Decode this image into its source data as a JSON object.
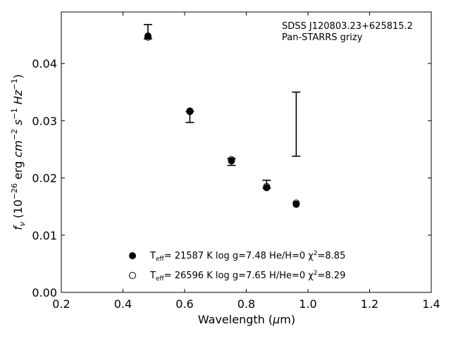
{
  "chart_data": {
    "type": "scatter",
    "annotation": [
      "SDSS J120803.23+625815.2",
      "Pan-STARRS grizy"
    ],
    "xlabel": "Wavelength (μm)",
    "ylabel": "f_ν (10^−26 erg cm^−2 s^−1 Hz^−1)",
    "xlim": [
      0.2,
      1.4
    ],
    "ylim": [
      0.0,
      0.049
    ],
    "xticks": [
      0.2,
      0.4,
      0.6,
      0.8,
      1.0,
      1.2,
      1.4
    ],
    "xtick_labels": [
      "0.2",
      "0.4",
      "0.6",
      "0.8",
      "1.0",
      "1.2",
      "1.4"
    ],
    "yticks": [
      0.0,
      0.01,
      0.02,
      0.03,
      0.04
    ],
    "ytick_labels": [
      "0.00",
      "0.01",
      "0.02",
      "0.03",
      "0.04"
    ],
    "grid": false,
    "legend_position": "lower-center",
    "observed": [
      {
        "x": 0.481,
        "y": 0.0445,
        "yerr_low": 0.0443,
        "yerr_high": 0.0468
      },
      {
        "x": 0.617,
        "y": 0.0316,
        "yerr_low": 0.0297,
        "yerr_high": 0.0316
      },
      {
        "x": 0.752,
        "y": 0.0232,
        "yerr_low": 0.0222,
        "yerr_high": 0.0234
      },
      {
        "x": 0.866,
        "y": 0.0184,
        "yerr_low": 0.0182,
        "yerr_high": 0.0196
      },
      {
        "x": 0.962,
        "y": 0.0155,
        "yerr_low": 0.0238,
        "yerr_high": 0.035
      }
    ],
    "series": [
      {
        "name": "T_eff= 21587 K  log g=7.48  He/H=0  χ²=8.85",
        "marker": "filled-circle",
        "x": [
          0.481,
          0.617,
          0.752,
          0.866,
          0.962
        ],
        "y": [
          0.0448,
          0.0316,
          0.023,
          0.0183,
          0.0154
        ]
      },
      {
        "name": "T_eff= 26596 K  log g=7.65  H/He=0  χ²=8.29",
        "marker": "open-circle",
        "x": [
          0.481,
          0.617,
          0.752,
          0.866,
          0.962
        ],
        "y": [
          0.0446,
          0.0317,
          0.0232,
          0.0185,
          0.0156
        ]
      }
    ]
  }
}
